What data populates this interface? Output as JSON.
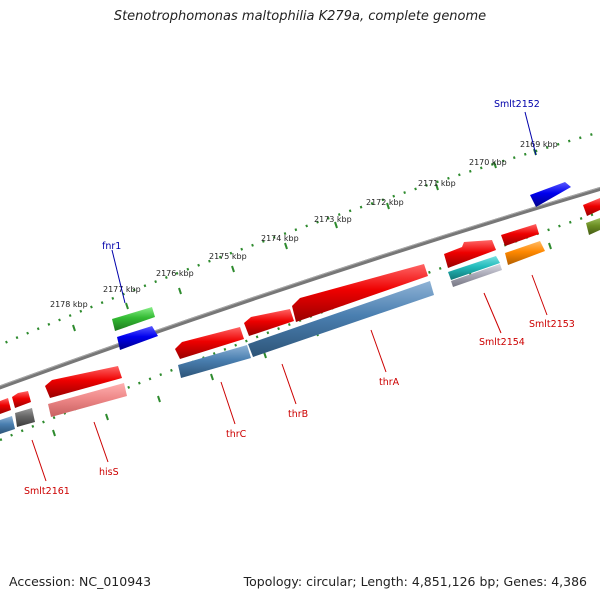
{
  "title": "Stenotrophomonas maltophilia K279a, complete genome",
  "footer": {
    "accession": "Accession: NC_010943",
    "summary": "Topology: circular; Length: 4,851,126 bp; Genes: 4,386"
  },
  "colors": {
    "backbone": "#777777",
    "tick_dots": "#2e8b2e",
    "label_red": "#cc0000",
    "label_blue": "#0000aa",
    "gene_red": "#ee0000",
    "gene_blue": "#0000ee",
    "gene_green": "#33bb33",
    "gene_steelblue": "#4a7fb0",
    "gene_pink": "#ee8888",
    "gene_gray": "#666666",
    "gene_orange": "#ff8800",
    "gene_cyan": "#22bbbb",
    "gene_olive": "#6b8e23"
  },
  "kbp_labels": [
    "2169 kbp",
    "2170 kbp",
    "2171 kbp",
    "2172 kbp",
    "2173 kbp",
    "2174 kbp",
    "2175 kbp",
    "2176 kbp",
    "2177 kbp",
    "2178 kbp"
  ],
  "gene_labels": {
    "fnr1": "fnr1",
    "Smlt2152": "Smlt2152",
    "Smlt2153": "Smlt2153",
    "Smlt2154": "Smlt2154",
    "thrA": "thrA",
    "thrB": "thrB",
    "thrC": "thrC",
    "hisS": "hisS",
    "Smlt2161": "Smlt2161"
  }
}
